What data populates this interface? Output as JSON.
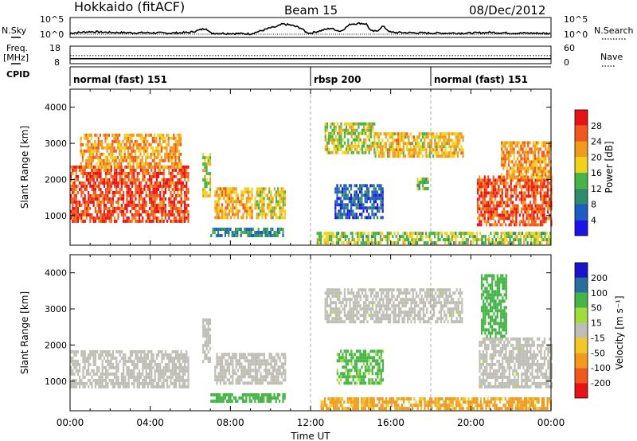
{
  "header": {
    "station": "Hokkaido (fitACF)",
    "beam": "Beam 15",
    "date": "08/Dec/2012"
  },
  "sky_panel": {
    "left_label": "N.Sky",
    "right_label": "N.Search",
    "left_ticks": [
      "10^5",
      "10^0"
    ],
    "right_ticks": [
      "10^5",
      "10^0"
    ]
  },
  "freq_panel": {
    "left_label_line1": "Freq.",
    "left_label_line2": "[MHz]",
    "right_label": "Nave",
    "left_ticks": [
      "18",
      "8"
    ],
    "right_ticks": [
      "60",
      "0"
    ]
  },
  "cpid": {
    "label": "CPID",
    "segments": [
      {
        "label": "normal (fast) 151",
        "start_hour": 0,
        "end_hour": 12
      },
      {
        "label": "rbsp 200",
        "start_hour": 12,
        "end_hour": 18
      },
      {
        "label": "normal (fast) 151",
        "start_hour": 18,
        "end_hour": 24
      }
    ]
  },
  "x_axis": {
    "label": "Time UT",
    "ticks": [
      "00:00",
      "04:00",
      "08:00",
      "12:00",
      "16:00",
      "20:00",
      "00:00"
    ]
  },
  "colors": {
    "power": [
      "#1a14e6",
      "#1f5cc2",
      "#2f8c6a",
      "#46b446",
      "#f0d21e",
      "#f09a1e",
      "#f0591e",
      "#e61414"
    ],
    "velocity": [
      "#e61414",
      "#f0591e",
      "#f09a1e",
      "#f0c828",
      "#bebeb4",
      "#a0dc3c",
      "#46b446",
      "#2a6e9a",
      "#1a14c8"
    ],
    "ground": "#bebeb4"
  },
  "chart_data": [
    {
      "type": "line",
      "title": "N.Sky / N.Search",
      "x_unit": "hours UT",
      "x": [
        0,
        1,
        2,
        3,
        4,
        5,
        6,
        6.8,
        7.0,
        8,
        9,
        9.5,
        10,
        10.3,
        10.6,
        11,
        11.5,
        11.8,
        12,
        13,
        13.5,
        14,
        14.5,
        14.8,
        15,
        15.3,
        15.6,
        16,
        17,
        18,
        19,
        20,
        21,
        22,
        23,
        24
      ],
      "series": [
        {
          "name": "N.Sky",
          "values": [
            1.0,
            1.4,
            1.2,
            1.1,
            1.1,
            1.0,
            1.2,
            2.4,
            1.0,
            0.9,
            0.8,
            1.6,
            2.5,
            2.8,
            3.6,
            3.3,
            2.5,
            1.2,
            1.0,
            2.4,
            1.5,
            3.6,
            3.8,
            3.6,
            1.6,
            1.5,
            3.0,
            1.2,
            1.1,
            1.0,
            1.0,
            1.0,
            1.2,
            1.0,
            1.0,
            0.9
          ]
        }
      ],
      "ylim": [
        0,
        5
      ],
      "yscale": "log"
    },
    {
      "type": "line",
      "title": "Freq. / Nave",
      "x_unit": "hours UT",
      "x": [
        0,
        24
      ],
      "series": [
        {
          "name": "Freq. [MHz]",
          "values": [
            10.5,
            10.5
          ]
        },
        {
          "name": "Nave",
          "values": [
            26,
            26
          ]
        }
      ],
      "ylim_left": [
        8,
        18
      ],
      "ylim_right": [
        0,
        60
      ]
    },
    {
      "type": "heatmap",
      "title": "Power",
      "ylabel": "Slant Range [km]",
      "xlabel": "Time UT",
      "xlim": [
        0,
        24
      ],
      "ylim": [
        180,
        4500
      ],
      "yticks": [
        1000,
        2000,
        3000,
        4000
      ],
      "colorbar": {
        "label": "Power [dB]",
        "ticks": [
          "4",
          "8",
          "12",
          "16",
          "20",
          "24",
          "28"
        ],
        "range": [
          0,
          32
        ]
      },
      "regions": [
        {
          "t0": 0.0,
          "t1": 5.9,
          "r0": 800,
          "r1": 2300,
          "level": 27
        },
        {
          "t0": 0.5,
          "t1": 5.5,
          "r0": 2300,
          "r1": 3200,
          "level": 22
        },
        {
          "t0": 6.6,
          "t1": 7.0,
          "r0": 1500,
          "r1": 2700,
          "level": 18
        },
        {
          "t0": 7.2,
          "t1": 9.1,
          "r0": 900,
          "r1": 1750,
          "level": 21
        },
        {
          "t0": 9.2,
          "t1": 10.7,
          "r0": 900,
          "r1": 1750,
          "level": 18
        },
        {
          "t0": 12.7,
          "t1": 15.2,
          "r0": 2700,
          "r1": 3500,
          "level": 17
        },
        {
          "t0": 15.2,
          "t1": 19.6,
          "r0": 2600,
          "r1": 3300,
          "level": 20
        },
        {
          "t0": 13.2,
          "t1": 15.6,
          "r0": 900,
          "r1": 1800,
          "level": 6
        },
        {
          "t0": 17.3,
          "t1": 17.9,
          "r0": 1700,
          "r1": 2000,
          "level": 14
        },
        {
          "t0": 20.3,
          "t1": 24.0,
          "r0": 700,
          "r1": 2100,
          "level": 27
        },
        {
          "t0": 21.5,
          "t1": 24.0,
          "r0": 2000,
          "r1": 3000,
          "level": 22
        },
        {
          "t0": 7.0,
          "t1": 10.7,
          "r0": 400,
          "r1": 650,
          "level": 10
        },
        {
          "t0": 12.3,
          "t1": 24.0,
          "r0": 200,
          "r1": 550,
          "level": 16
        }
      ]
    },
    {
      "type": "heatmap",
      "title": "Velocity",
      "ylabel": "Slant Range [km]",
      "xlabel": "Time UT",
      "xlim": [
        0,
        24
      ],
      "ylim": [
        180,
        4500
      ],
      "yticks": [
        1000,
        2000,
        3000,
        4000
      ],
      "colorbar": {
        "label": "Velocity [m s^-1]",
        "ticks": [
          "200",
          "100",
          "50",
          "15",
          "-15",
          "-50",
          "-100",
          "-200"
        ],
        "range": [
          -250,
          250
        ]
      },
      "regions": [
        {
          "t0": 0.0,
          "t1": 5.9,
          "r0": 800,
          "r1": 1800,
          "level": 0
        },
        {
          "t0": 6.6,
          "t1": 7.0,
          "r0": 1500,
          "r1": 2700,
          "level": 0
        },
        {
          "t0": 7.2,
          "t1": 10.7,
          "r0": 900,
          "r1": 1750,
          "level": 0
        },
        {
          "t0": 12.7,
          "t1": 19.6,
          "r0": 2600,
          "r1": 3500,
          "level": 5
        },
        {
          "t0": 20.4,
          "t1": 24.0,
          "r0": 800,
          "r1": 2200,
          "level": 5
        },
        {
          "t0": 20.5,
          "t1": 21.8,
          "r0": 2200,
          "r1": 3900,
          "level": 60
        },
        {
          "t0": 13.3,
          "t1": 15.6,
          "r0": 900,
          "r1": 1800,
          "level": 40
        },
        {
          "t0": 7.0,
          "t1": 10.7,
          "r0": 400,
          "r1": 650,
          "level": 50
        },
        {
          "t0": 12.5,
          "t1": 24.0,
          "r0": 200,
          "r1": 550,
          "level": -40
        }
      ]
    }
  ]
}
